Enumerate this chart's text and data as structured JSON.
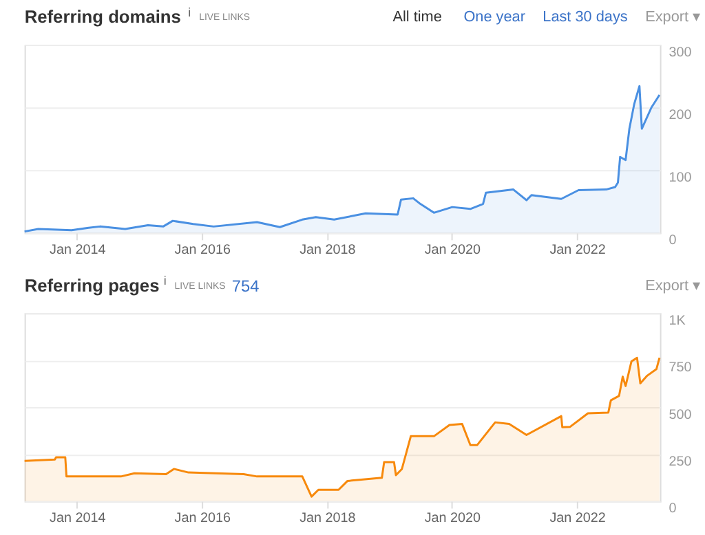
{
  "chart_data": [
    {
      "type": "area",
      "title": "Referring domains",
      "annotations": [
        "i",
        "LIVE LINKS",
        "All time",
        "One year",
        "Last 30 days",
        "Export ▾"
      ],
      "series": [
        {
          "color": "#4a90e2",
          "x": [
            "2013-03-01",
            "2013-05-20",
            "2013-12-01",
            "2014-03-10",
            "2014-05-15",
            "2014-10-10",
            "2015-02-20",
            "2015-05-20",
            "2015-07-15",
            "2015-11-12",
            "2016-03-10",
            "2016-11-18",
            "2017-04-01",
            "2017-08-10",
            "2017-10-28",
            "2018-02-12",
            "2018-08-15",
            "2019-02-18",
            "2019-03-10",
            "2019-05-20",
            "2019-07-01",
            "2019-09-18",
            "2020-01-03",
            "2020-04-18",
            "2020-07-01",
            "2020-07-18",
            "2020-12-25",
            "2021-03-12",
            "2021-04-10",
            "2021-10-01",
            "2022-01-10",
            "2022-06-20",
            "2022-08-12",
            "2022-08-28",
            "2022-09-10",
            "2022-10-12",
            "2022-11-03",
            "2022-12-01",
            "2023-01-01",
            "2023-01-15",
            "2023-03-12",
            "2023-04-28"
          ],
          "values": [
            2,
            6,
            4,
            8,
            10,
            6,
            12,
            10,
            19,
            14,
            10,
            17,
            9,
            21,
            25,
            21,
            31,
            29,
            53,
            55,
            46,
            32,
            41,
            38,
            46,
            64,
            69,
            52,
            60,
            54,
            68,
            69,
            73,
            80,
            121,
            116,
            166,
            205,
            234,
            166,
            200,
            220
          ]
        }
      ],
      "xlim": [
        "2013-03-01",
        "2023-05-01"
      ],
      "xticks": [
        {
          "value": "2014-01-01",
          "label": "Jan 2014"
        },
        {
          "value": "2016-01-01",
          "label": "Jan 2016"
        },
        {
          "value": "2018-01-01",
          "label": "Jan 2018"
        },
        {
          "value": "2020-01-01",
          "label": "Jan 2020"
        },
        {
          "value": "2022-01-01",
          "label": "Jan 2022"
        }
      ],
      "ylim": [
        0,
        300
      ],
      "yticks": [
        0,
        100,
        200,
        300
      ],
      "grid": "y"
    },
    {
      "type": "area",
      "title": "Referring pages",
      "annotations": [
        "i",
        "LIVE LINKS",
        "754",
        "Export ▾"
      ],
      "series": [
        {
          "color": "#f7890c",
          "x": [
            "2013-03-01",
            "2013-08-25",
            "2013-09-01",
            "2013-10-25",
            "2013-11-01",
            "2014-09-15",
            "2014-12-03",
            "2015-06-06",
            "2015-07-22",
            "2015-10-15",
            "2016-09-01",
            "2016-11-18",
            "2017-08-10",
            "2017-10-03",
            "2017-11-12",
            "2018-03-10",
            "2018-05-01",
            "2018-11-18",
            "2018-12-01",
            "2019-01-28",
            "2019-02-08",
            "2019-03-15",
            "2019-05-06",
            "2019-09-18",
            "2019-12-18",
            "2020-03-01",
            "2020-04-18",
            "2020-05-28",
            "2020-09-10",
            "2020-12-01",
            "2021-03-12",
            "2021-10-01",
            "2021-10-07",
            "2021-11-22",
            "2022-03-06",
            "2022-07-03",
            "2022-07-18",
            "2022-09-04",
            "2022-09-25",
            "2022-10-12",
            "2022-11-15",
            "2022-12-18",
            "2023-01-06",
            "2023-02-15",
            "2023-04-10",
            "2023-04-28"
          ],
          "values": [
            214,
            221,
            233,
            233,
            131,
            131,
            148,
            143,
            171,
            152,
            143,
            131,
            131,
            24,
            60,
            60,
            107,
            124,
            207,
            207,
            138,
            171,
            345,
            345,
            405,
            410,
            298,
            298,
            419,
            410,
            352,
            452,
            393,
            395,
            467,
            471,
            536,
            560,
            662,
            612,
            743,
            762,
            626,
            667,
            702,
            762
          ]
        }
      ],
      "xlim": [
        "2013-03-01",
        "2023-05-01"
      ],
      "xticks": [
        {
          "value": "2014-01-01",
          "label": "Jan 2014"
        },
        {
          "value": "2016-01-01",
          "label": "Jan 2016"
        },
        {
          "value": "2018-01-01",
          "label": "Jan 2018"
        },
        {
          "value": "2020-01-01",
          "label": "Jan 2020"
        },
        {
          "value": "2022-01-01",
          "label": "Jan 2022"
        }
      ],
      "ylim": [
        0,
        1000
      ],
      "yticks": [
        0,
        250,
        500,
        750,
        {
          "value": 1000,
          "label": "1K"
        }
      ],
      "grid": "y"
    }
  ]
}
